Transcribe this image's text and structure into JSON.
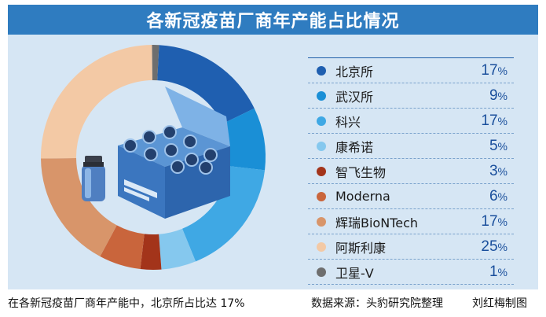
{
  "header": {
    "title": "各新冠疫苗厂商年产能占比情况"
  },
  "chart_data": {
    "type": "pie",
    "title": "各新冠疫苗厂商年产能占比情况",
    "unit": "%",
    "slices": [
      {
        "label": "北京所",
        "value": 17,
        "color": "#1f5fb0"
      },
      {
        "label": "武汉所",
        "value": 9,
        "color": "#1a8fd6"
      },
      {
        "label": "科兴",
        "value": 17,
        "color": "#3fa8e4"
      },
      {
        "label": "康希诺",
        "value": 5,
        "color": "#85c8ee"
      },
      {
        "label": "智飞生物",
        "value": 3,
        "color": "#a3341a"
      },
      {
        "label": "Moderna",
        "value": 6,
        "color": "#c9653c"
      },
      {
        "label": "辉瑞BioNTech",
        "value": 17,
        "color": "#d8956a"
      },
      {
        "label": "阿斯利康",
        "value": 25,
        "color": "#f3c9a5"
      },
      {
        "label": "卫星-V",
        "value": 1,
        "color": "#6e6e6e"
      }
    ],
    "pct_symbol": "%"
  },
  "footer": {
    "caption": "在各新冠疫苗厂商年产能中，北京所占比达 17%",
    "source": "数据来源：头豹研究院整理",
    "author": "刘红梅制图"
  }
}
